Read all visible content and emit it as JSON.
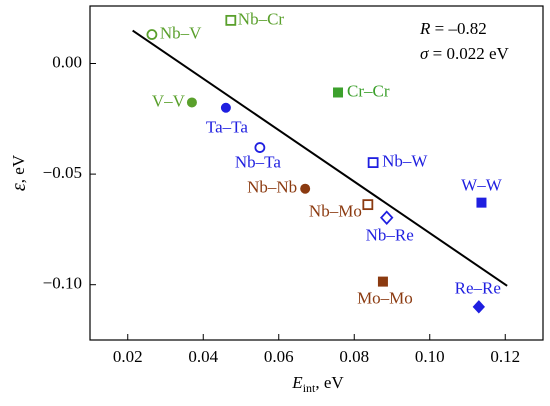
{
  "chart_data": {
    "type": "scatter",
    "xlabel": {
      "main": "E",
      "sub": "int",
      "rest": ", eV"
    },
    "ylabel": {
      "main": "ε",
      "rest": ", eV"
    },
    "annotations": [
      {
        "symbol": "R",
        "text": " = –0.82"
      },
      {
        "symbol": "σ",
        "text": " = 0.022 eV"
      }
    ],
    "xlim": [
      0.01,
      0.13
    ],
    "ylim": [
      -0.125,
      0.026
    ],
    "xticks": [
      0.02,
      0.04,
      0.06,
      0.08,
      {
        "value": 0.1,
        "label": "0.10"
      },
      0.12
    ],
    "yticks": [
      {
        "value": 0,
        "label": "0.00"
      },
      {
        "value": -0.05,
        "label": "−0.05"
      },
      {
        "value": -0.1,
        "label": "−0.10"
      }
    ],
    "fit_line": {
      "x": [
        0.0213,
        0.1205
      ],
      "y": [
        0.0149,
        -0.1005
      ],
      "color": "#000000"
    },
    "points": [
      {
        "name": "Nb–V",
        "x": 0.0264,
        "y": 0.0131,
        "color": "#5aa02c",
        "marker": "circle",
        "filled": false
      },
      {
        "name": "Nb–Cr",
        "x": 0.0473,
        "y": 0.0195,
        "color": "#5aa02c",
        "marker": "square",
        "filled": false
      },
      {
        "name": "V–V",
        "x": 0.037,
        "y": -0.0176,
        "color": "#5aa02c",
        "marker": "circle",
        "filled": true
      },
      {
        "name": "Cr–Cr",
        "x": 0.0757,
        "y": -0.0131,
        "color": "#3ca02c",
        "marker": "square",
        "filled": true
      },
      {
        "name": "Ta–Ta",
        "x": 0.046,
        "y": -0.02,
        "color": "#1f1fe0",
        "marker": "circle",
        "filled": true
      },
      {
        "name": "Nb–Ta",
        "x": 0.055,
        "y": -0.038,
        "color": "#1f1fe0",
        "marker": "circle",
        "filled": false
      },
      {
        "name": "Nb–W",
        "x": 0.085,
        "y": -0.0448,
        "color": "#1f1fe0",
        "marker": "square",
        "filled": false
      },
      {
        "name": "W–W",
        "x": 0.1137,
        "y": -0.0629,
        "color": "#1f1fe0",
        "marker": "square",
        "filled": true
      },
      {
        "name": "Nb–Nb",
        "x": 0.067,
        "y": -0.0566,
        "color": "#8b3a10",
        "marker": "circle",
        "filled": true
      },
      {
        "name": "Nb–Mo",
        "x": 0.0836,
        "y": -0.0638,
        "color": "#8b3a10",
        "marker": "square",
        "filled": false
      },
      {
        "name": "Nb–Re",
        "x": 0.0886,
        "y": -0.0697,
        "color": "#1f1fe0",
        "marker": "diamond",
        "filled": false
      },
      {
        "name": "Mo–Mo",
        "x": 0.0876,
        "y": -0.0986,
        "color": "#8b3a10",
        "marker": "square",
        "filled": true
      },
      {
        "name": "Re–Re",
        "x": 0.113,
        "y": -0.11,
        "color": "#1f1fe0",
        "marker": "diamond",
        "filled": true
      }
    ]
  }
}
